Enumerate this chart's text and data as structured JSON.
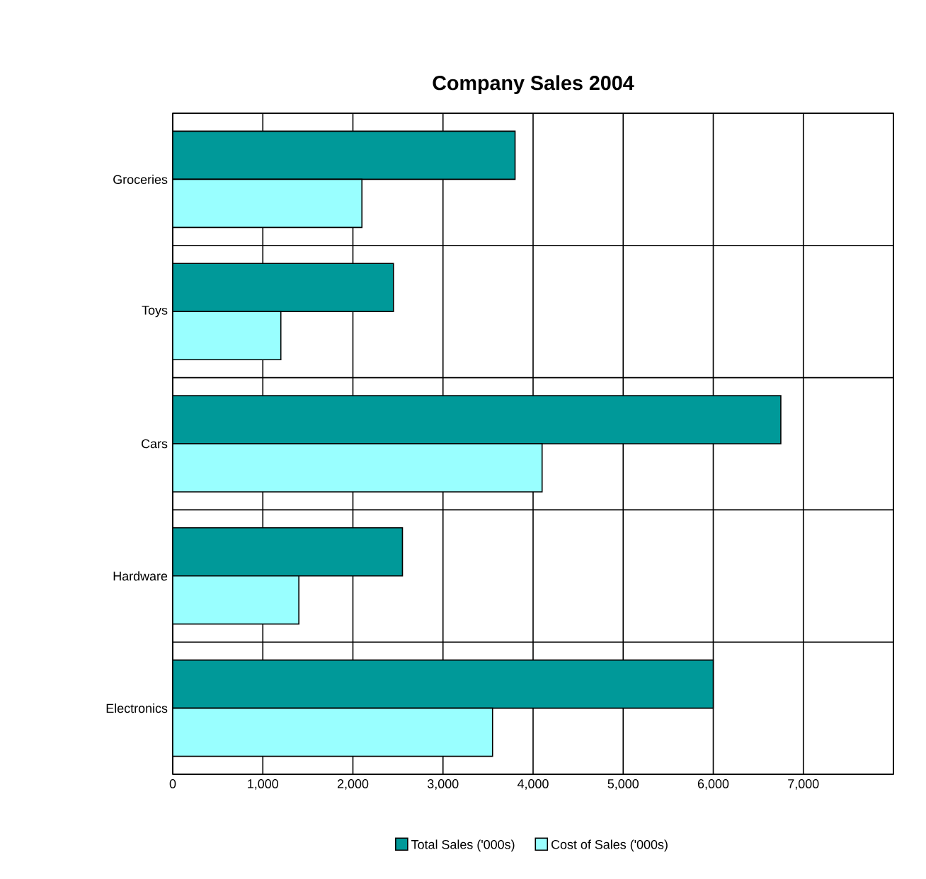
{
  "chart_data": {
    "type": "bar",
    "orientation": "horizontal",
    "title": "Company Sales 2004",
    "categories": [
      "Groceries",
      "Toys",
      "Cars",
      "Hardware",
      "Electronics"
    ],
    "series": [
      {
        "name": "Total Sales ('000s)",
        "color": "#009999",
        "values": [
          3800,
          2450,
          6750,
          2550,
          6000
        ]
      },
      {
        "name": "Cost of Sales ('000s)",
        "color": "#99ffff",
        "values": [
          2100,
          1200,
          4100,
          1400,
          3550
        ]
      }
    ],
    "xlim": [
      0,
      8000
    ],
    "xticks": [
      0,
      {
        "value": 1000,
        "label": "1,000"
      },
      {
        "value": 2000,
        "label": "2,000"
      },
      {
        "value": 3000,
        "label": "3,000"
      },
      {
        "value": 4000,
        "label": "4,000"
      },
      {
        "value": 5000,
        "label": "5,000"
      },
      {
        "value": 6000,
        "label": "6,000"
      },
      {
        "value": 7000,
        "label": "7,000"
      },
      {
        "value": 8000,
        "label": null
      }
    ],
    "grid": "x",
    "legend": "bottom"
  }
}
